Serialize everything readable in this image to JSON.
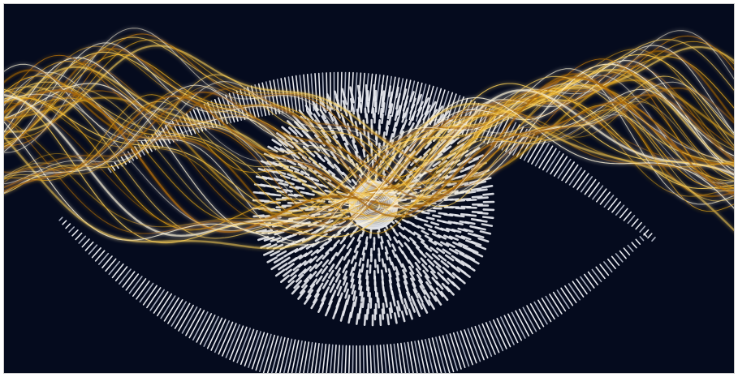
{
  "artwork": {
    "subject": "eye-icon",
    "colors": {
      "background": "#050b1e",
      "dash": "#e6e8ee",
      "dash_dim": "#a9afbf",
      "gold_bright": "#ffd35a",
      "gold": "#e0a41c",
      "gold_deep": "#a8680a",
      "white_ribbon": "#fff6dc"
    }
  }
}
